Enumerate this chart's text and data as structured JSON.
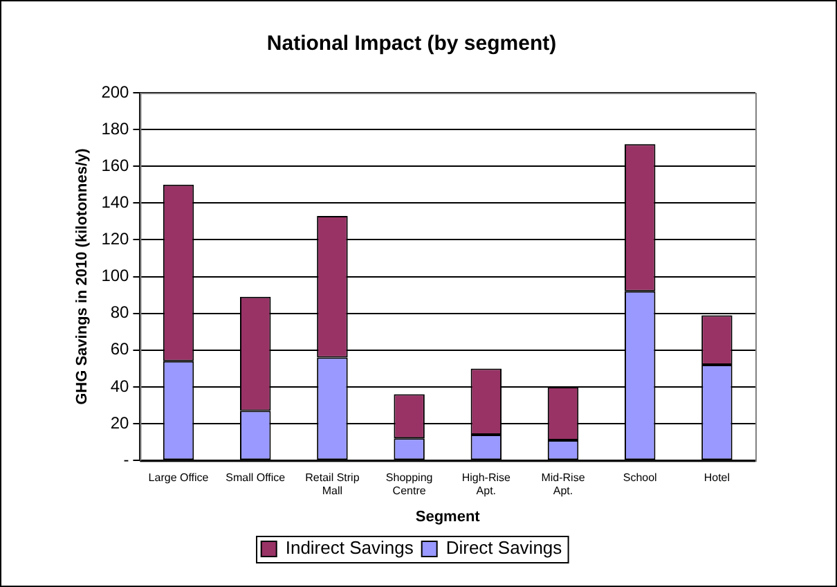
{
  "chart_data": {
    "type": "bar",
    "title": "National Impact (by segment)",
    "xlabel": "Segment",
    "ylabel": "GHG Savings in 2010 (kilotonnes/y)",
    "categories": [
      "Large Office",
      "Small Office",
      "Retail Strip Mall",
      "Shopping Centre",
      "High-Rise Apt.",
      "Mid-Rise Apt.",
      "School",
      "Hotel"
    ],
    "series": [
      {
        "name": "Direct Savings",
        "color": "#9999ff",
        "values": [
          54,
          27,
          56,
          12,
          14,
          11,
          92,
          52
        ]
      },
      {
        "name": "Indirect Savings",
        "color": "#993366",
        "values": [
          96,
          62,
          77,
          24,
          36,
          29,
          80,
          27
        ]
      }
    ],
    "stacked": true,
    "ylim": [
      0,
      200
    ],
    "yticks": [
      {
        "value": 0,
        "label": "-"
      },
      20,
      40,
      60,
      80,
      100,
      120,
      140,
      160,
      180,
      200
    ],
    "grid": "y",
    "legend": "bottom"
  }
}
